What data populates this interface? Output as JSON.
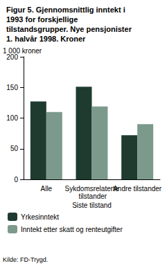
{
  "chart_data": {
    "type": "bar",
    "title": "Figur 5. Gjennomsnittlig inntekt i 1993 for forskjellige tilstandsgrupper. Nye pensjonister 1. halvår 1998. Kroner",
    "y_label": "1 000 kroner",
    "x_label": "Siste tilstand",
    "categories": [
      "Alle",
      "Sykdomsrelaterte tilstander",
      "Andre tilstander"
    ],
    "series": [
      {
        "name": "Yrkesinntekt",
        "color": "#1f3b30",
        "values": [
          127,
          151,
          72
        ]
      },
      {
        "name": "Inntekt etter skatt og renteutgifter",
        "color": "#7c9a8c",
        "values": [
          110,
          119,
          90
        ]
      }
    ],
    "ylim": [
      0,
      200
    ],
    "yticks": [
      0,
      50,
      100,
      150,
      200
    ],
    "grid": false,
    "legend": "bottom",
    "source": "Kilde: FD-Trygd."
  }
}
